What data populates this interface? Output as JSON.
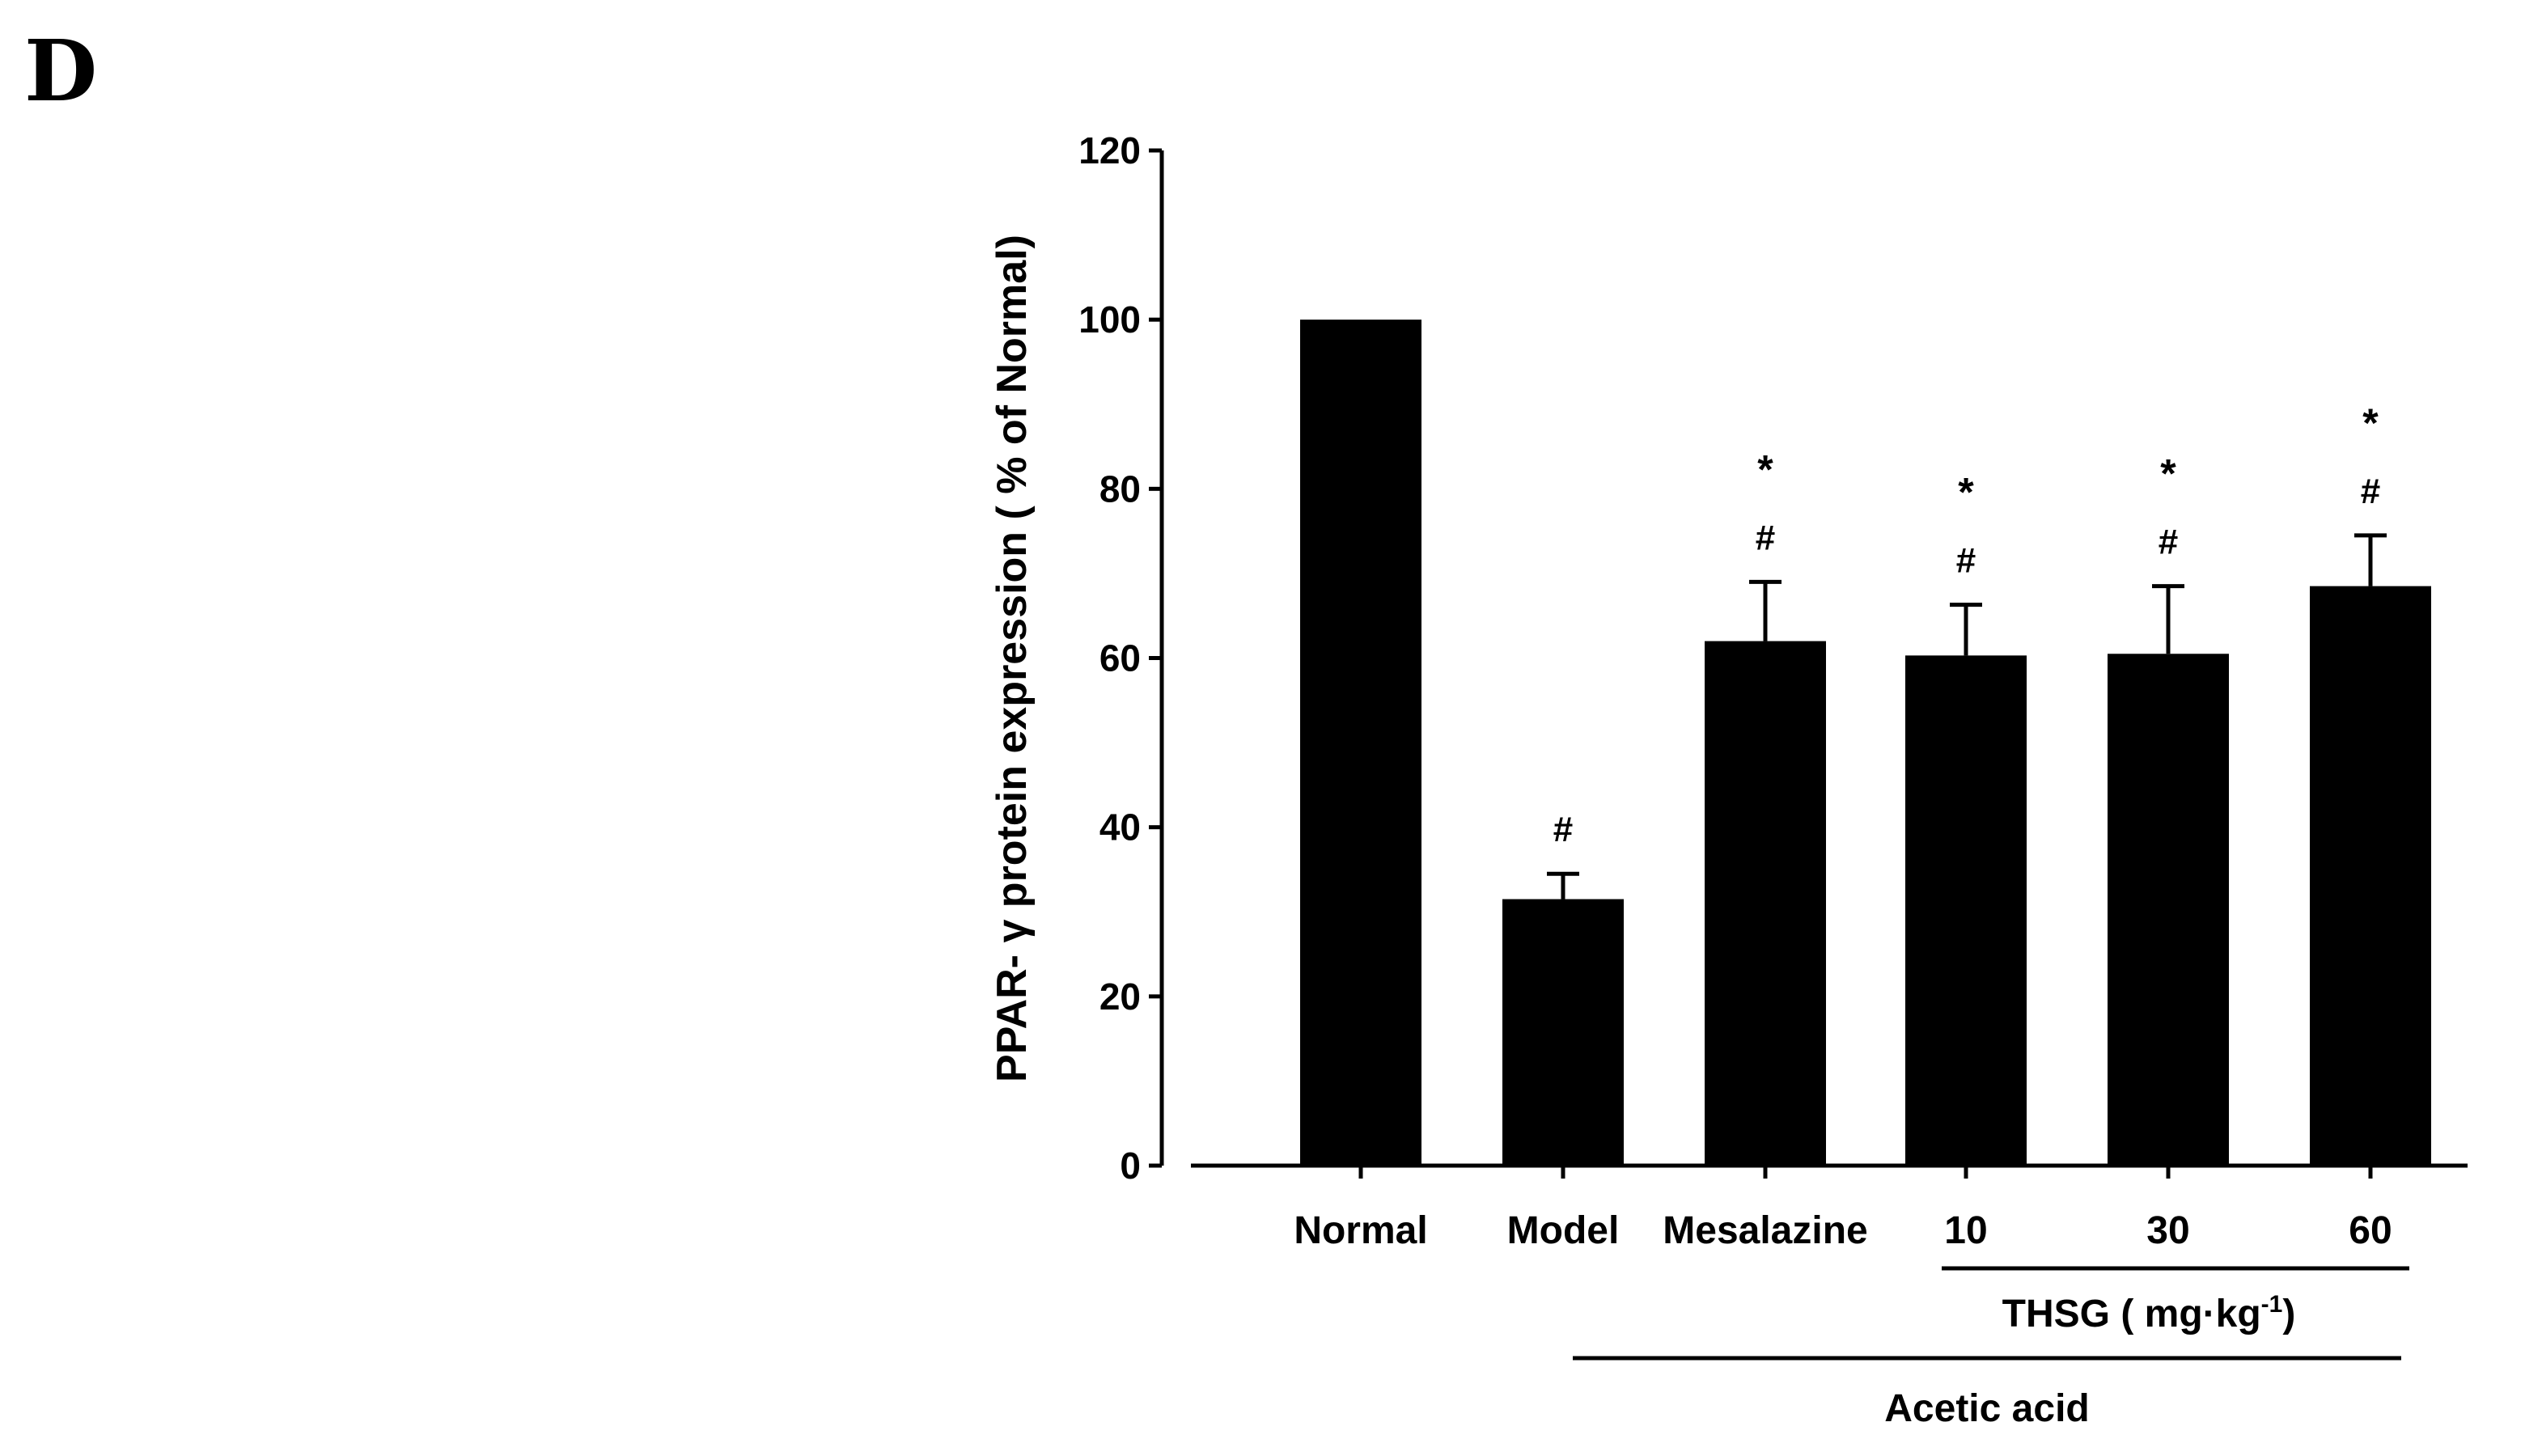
{
  "panel_label": "D",
  "chart_data": {
    "type": "bar",
    "ylabel": "PPAR- γ protein expression ( % of Normal)",
    "xlabel": "",
    "ylim": [
      0,
      120
    ],
    "yticks": [
      0,
      20,
      40,
      60,
      80,
      100,
      120
    ],
    "categories": [
      "Normal",
      "Model",
      "Mesalazine",
      "10",
      "30",
      "60"
    ],
    "values": [
      100,
      31.5,
      62,
      60.3,
      60.5,
      68.5
    ],
    "errors": [
      0,
      3,
      7,
      6,
      8,
      6
    ],
    "bar_color": "#000000",
    "annotations": [
      [
        "#"
      ],
      [
        "#"
      ],
      [
        "#",
        "*"
      ],
      [
        "#",
        "*"
      ],
      [
        "#",
        "*"
      ],
      [
        "#",
        "*"
      ]
    ],
    "annotation_show": [
      false,
      true,
      true,
      true,
      true,
      true
    ],
    "group_labels": {
      "thsg": "THSG ( mg·kg",
      "thsg_sup": "-1",
      "thsg_close": ")",
      "acetic": "Acetic acid"
    }
  }
}
